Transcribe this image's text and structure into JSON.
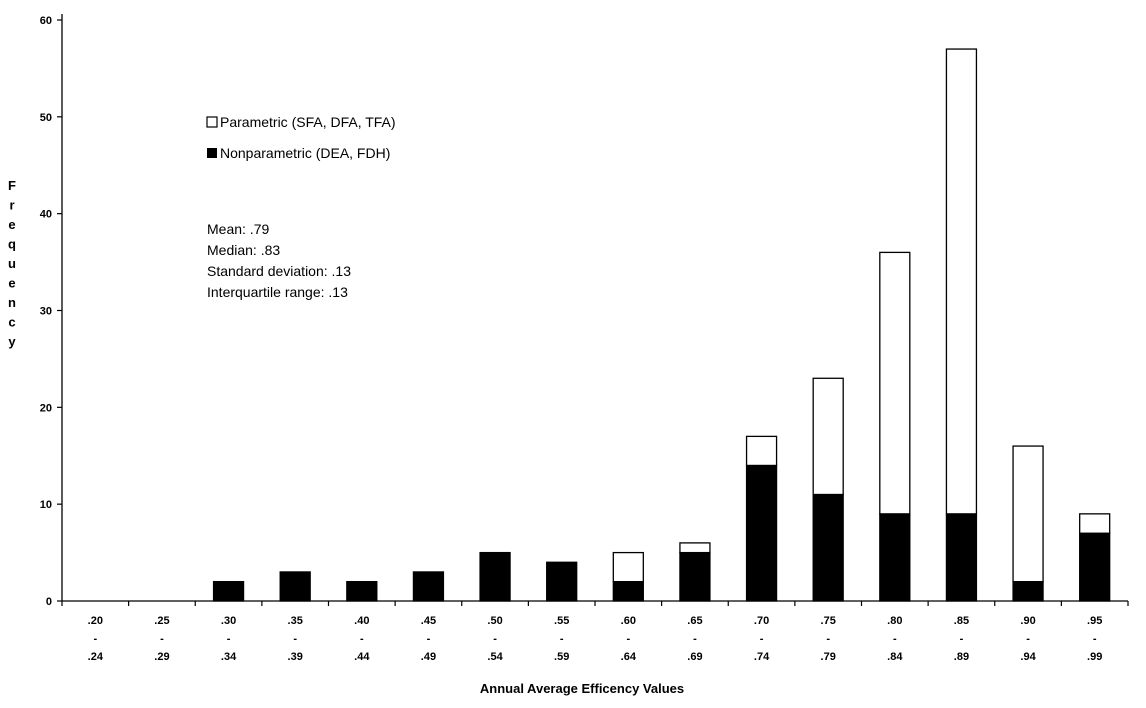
{
  "chart_data": {
    "type": "bar",
    "stacked": true,
    "title": "",
    "xlabel": "Annual Average Efficency Values",
    "ylabel": "Frequency",
    "ylim": [
      0,
      60
    ],
    "yticks": [
      0,
      10,
      20,
      30,
      40,
      50,
      60
    ],
    "grid": false,
    "legend_position": "top-left",
    "categories": [
      {
        "top": ".20",
        "mid": "-",
        "bottom": ".24"
      },
      {
        "top": ".25",
        "mid": "-",
        "bottom": ".29"
      },
      {
        "top": ".30",
        "mid": "-",
        "bottom": ".34"
      },
      {
        "top": ".35",
        "mid": "-",
        "bottom": ".39"
      },
      {
        "top": ".40",
        "mid": "-",
        "bottom": ".44"
      },
      {
        "top": ".45",
        "mid": "-",
        "bottom": ".49"
      },
      {
        "top": ".50",
        "mid": "-",
        "bottom": ".54"
      },
      {
        "top": ".55",
        "mid": "-",
        "bottom": ".59"
      },
      {
        "top": ".60",
        "mid": "-",
        "bottom": ".64"
      },
      {
        "top": ".65",
        "mid": "-",
        "bottom": ".69"
      },
      {
        "top": ".70",
        "mid": "-",
        "bottom": ".74"
      },
      {
        "top": ".75",
        "mid": "-",
        "bottom": ".79"
      },
      {
        "top": ".80",
        "mid": "-",
        "bottom": ".84"
      },
      {
        "top": ".85",
        "mid": "-",
        "bottom": ".89"
      },
      {
        "top": ".90",
        "mid": "-",
        "bottom": ".94"
      },
      {
        "top": ".95",
        "mid": "-",
        "bottom": ".99"
      }
    ],
    "series": [
      {
        "name": "Nonparametric (DEA, FDH)",
        "color": "#000000",
        "values": [
          0,
          0,
          2,
          3,
          2,
          3,
          5,
          4,
          2,
          5,
          14,
          11,
          9,
          9,
          2,
          7
        ]
      },
      {
        "name": "Parametric (SFA, DFA, TFA)",
        "color": "#ffffff",
        "values": [
          0,
          0,
          0,
          0,
          0,
          0,
          0,
          0,
          3,
          1,
          3,
          12,
          27,
          48,
          14,
          2
        ]
      }
    ],
    "annotations": [
      "Mean: .79",
      "Median: .83",
      "Standard deviation: .13",
      "Interquartile range: .13"
    ]
  }
}
